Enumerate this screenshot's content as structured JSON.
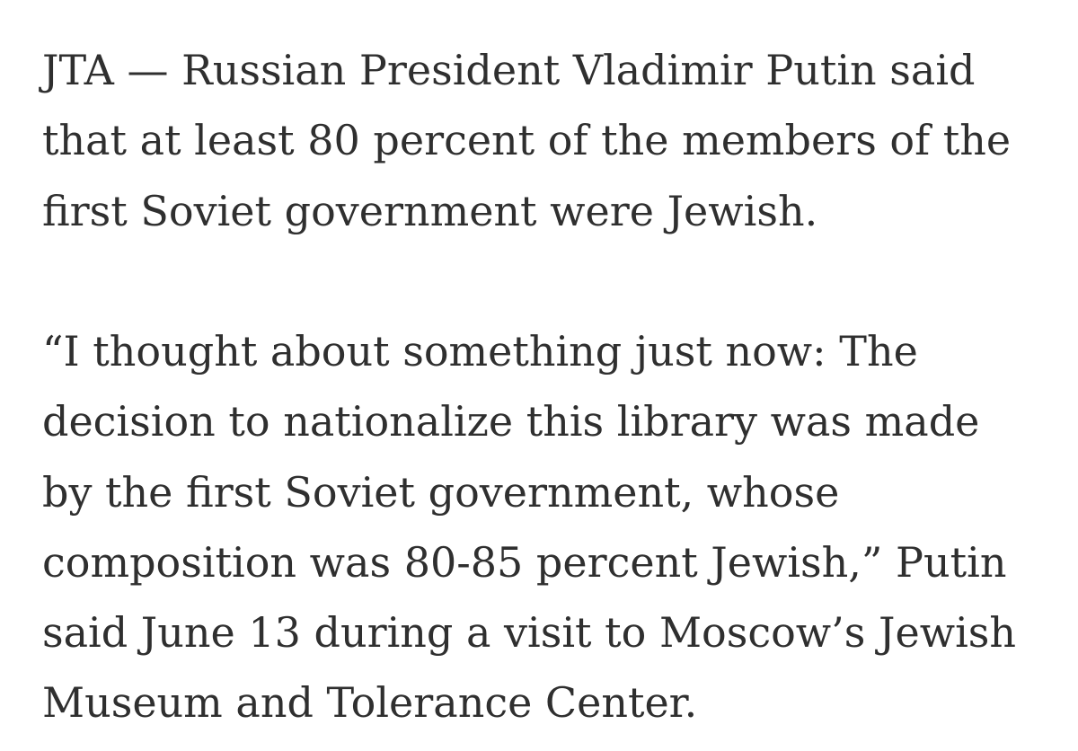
{
  "article": {
    "paragraphs": [
      {
        "lines": [
          "JTA — Russian President Vladimir Putin said",
          "that at least 80 percent of the members of the",
          "first Soviet government were Jewish."
        ]
      },
      {
        "lines": [
          "“I thought about something just now: The",
          "decision to nationalize this library was made",
          "by the first Soviet government, whose",
          "composition was 80-85 percent Jewish,” Putin",
          "said June 13 during a visit to Moscow’s Jewish",
          "Museum and Tolerance Center."
        ]
      }
    ]
  }
}
